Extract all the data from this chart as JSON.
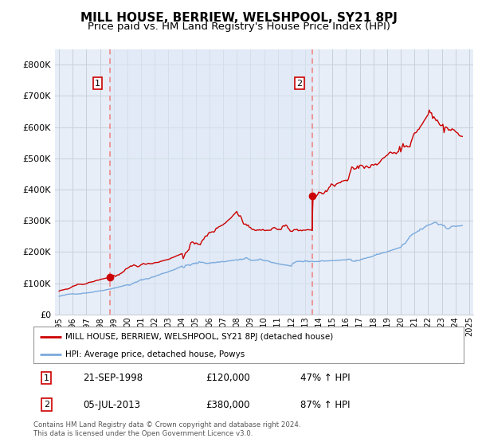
{
  "title": "MILL HOUSE, BERRIEW, WELSHPOOL, SY21 8PJ",
  "subtitle": "Price paid vs. HM Land Registry's House Price Index (HPI)",
  "ylim": [
    0,
    850000
  ],
  "yticks": [
    0,
    100000,
    200000,
    300000,
    400000,
    500000,
    600000,
    700000,
    800000
  ],
  "ytick_labels": [
    "£0",
    "£100K",
    "£200K",
    "£300K",
    "£400K",
    "£500K",
    "£600K",
    "£700K",
    "£800K"
  ],
  "background_color": "#ffffff",
  "chart_bg_color": "#e8eef8",
  "grid_color": "#c8d0d8",
  "title_fontsize": 11,
  "subtitle_fontsize": 9.5,
  "legend_label_red": "MILL HOUSE, BERRIEW, WELSHPOOL, SY21 8PJ (detached house)",
  "legend_label_blue": "HPI: Average price, detached house, Powys",
  "footnote": "Contains HM Land Registry data © Crown copyright and database right 2024.\nThis data is licensed under the Open Government Licence v3.0.",
  "sale1_label": "21-SEP-1998",
  "sale1_price": "£120,000",
  "sale1_hpi": "47% ↑ HPI",
  "sale2_label": "05-JUL-2013",
  "sale2_price": "£380,000",
  "sale2_hpi": "87% ↑ HPI",
  "marker1_x": 1998.72,
  "marker1_y": 120000,
  "marker2_x": 2013.5,
  "marker2_y": 380000,
  "vline1_x": 1998.72,
  "vline2_x": 2013.5,
  "red_color": "#cc0000",
  "blue_color": "#7aaadd",
  "vline_color": "#ee8888",
  "marker_box_color": "#cc0000",
  "xlim_left": 1994.7,
  "xlim_right": 2025.3
}
